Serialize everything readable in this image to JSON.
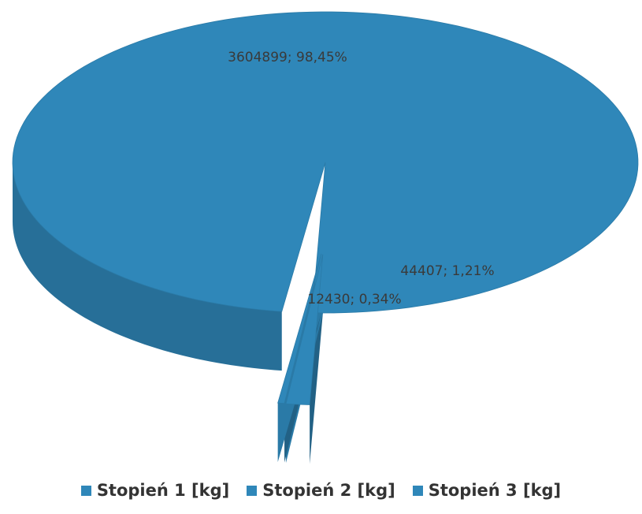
{
  "chart_data": {
    "type": "pie",
    "title": "",
    "series": [
      {
        "name": "Stopień 1 [kg]",
        "value": 3604899,
        "percent": 98.45,
        "label": "3604899; 98,45%",
        "color": "#2f87b9"
      },
      {
        "name": "Stopień 2 [kg]",
        "value": 12430,
        "percent": 0.34,
        "label": "12430; 0,34%",
        "color": "#2f87b9"
      },
      {
        "name": "Stopień 3 [kg]",
        "value": 44407,
        "percent": 1.21,
        "label": "44407; 1,21%",
        "color": "#2f87b9"
      }
    ],
    "style": "3d-exploded",
    "legend_position": "bottom"
  },
  "legend": {
    "items": [
      {
        "label": "Stopień 1 [kg]",
        "color": "#2f87b9"
      },
      {
        "label": "Stopień 2 [kg]",
        "color": "#2f87b9"
      },
      {
        "label": "Stopień 3 [kg]",
        "color": "#2f87b9"
      }
    ]
  }
}
